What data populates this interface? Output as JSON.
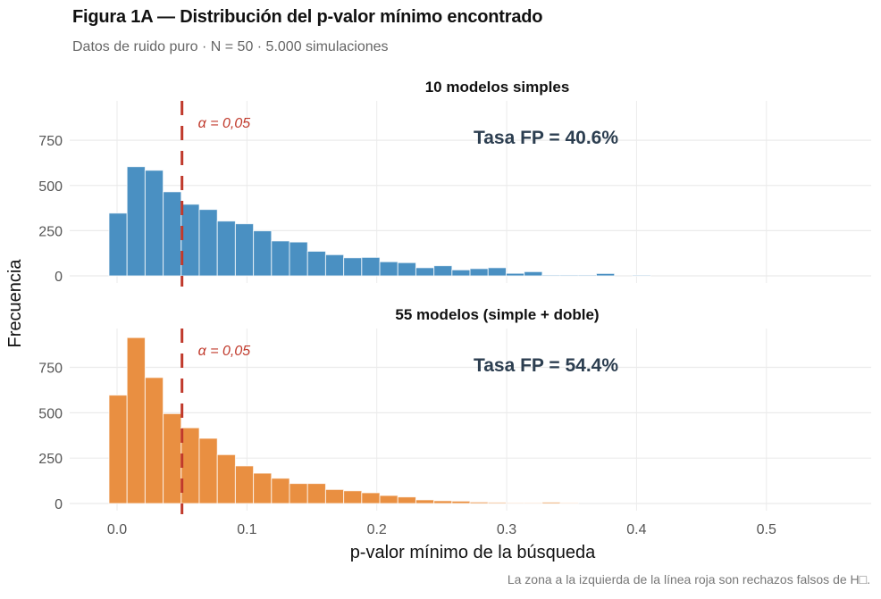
{
  "title": "Figura 1A — Distribución del p-valor mínimo encontrado",
  "subtitle": "Datos de ruido puro · N = 50 · 5.000 simulaciones",
  "caption": "La zona a la izquierda de la línea roja son rechazos falsos de H□.",
  "chart_data": {
    "type": "bar",
    "title": "Figura 1A — Distribución del p-valor mínimo encontrado",
    "subtitle": "Datos de ruido puro · N = 50 · 5.000 simulaciones",
    "xlabel": "p-valor mínimo de la búsqueda",
    "ylabel": "Frecuencia",
    "xlim": [
      -0.03,
      0.58
    ],
    "ylim": [
      0,
      960
    ],
    "x_ticks": [
      0.0,
      0.1,
      0.2,
      0.3,
      0.4,
      0.5
    ],
    "x_tick_labels": [
      "0.0",
      "0.1",
      "0.2",
      "0.3",
      "0.4",
      "0.5"
    ],
    "y_ticks": [
      0,
      250,
      500,
      750
    ],
    "y_tick_labels": [
      "0",
      "250",
      "500",
      "750"
    ],
    "grid": true,
    "bin_start": -0.0062,
    "bin_width": 0.0139,
    "reference_line": {
      "x": 0.05,
      "label": "α = 0,05",
      "color": "#C0392B"
    },
    "panels": [
      {
        "name": "10 modelos simples",
        "color": "#4A90C2",
        "annotation": "Tasa FP = 40.6%",
        "values": [
          347,
          604,
          584,
          465,
          396,
          367,
          303,
          288,
          249,
          193,
          187,
          136,
          117,
          100,
          102,
          78,
          73,
          45,
          56,
          33,
          40,
          45,
          14,
          23,
          5,
          5,
          5,
          13,
          0,
          4
        ]
      },
      {
        "name": "55 modelos (simple + doble)",
        "color": "#E98F41",
        "annotation": "Tasa FP = 54.4%",
        "values": [
          597,
          914,
          694,
          495,
          417,
          359,
          269,
          207,
          167,
          139,
          110,
          110,
          77,
          70,
          59,
          44,
          36,
          20,
          15,
          13,
          8,
          6,
          3,
          3,
          7,
          3
        ]
      }
    ]
  }
}
